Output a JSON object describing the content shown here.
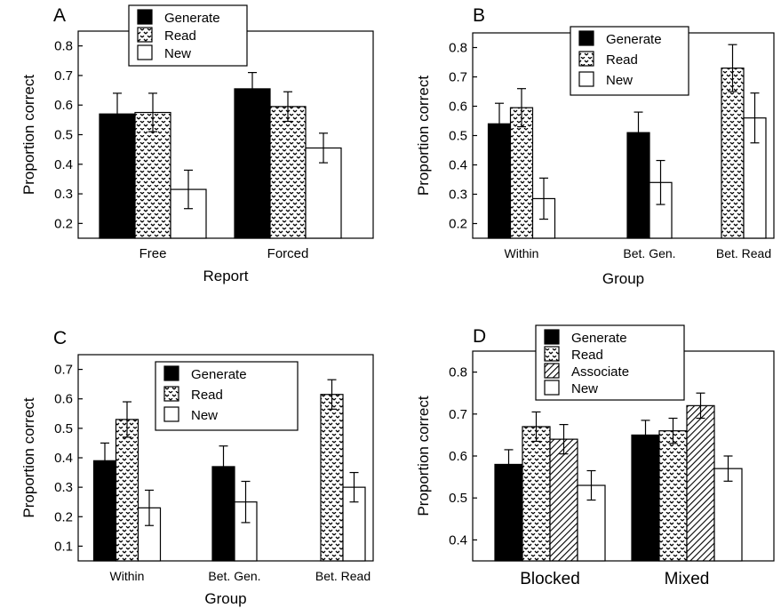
{
  "chart_data": [
    {
      "type": "bar",
      "panel_label": "A",
      "categories": [
        "Free",
        "Forced"
      ],
      "xlabel": "Report",
      "ylabel": "Proportion correct",
      "ylim": [
        0.15,
        0.85
      ],
      "yticks": [
        "0.2",
        "0.3",
        "0.4",
        "0.5",
        "0.6",
        "0.7",
        "0.8"
      ],
      "legend_position": "top-left",
      "series": [
        {
          "name": "Generate",
          "pattern": "solid",
          "values": [
            0.57,
            0.655
          ],
          "errors": [
            0.07,
            0.055
          ]
        },
        {
          "name": "Read",
          "pattern": "checker",
          "values": [
            0.575,
            0.595
          ],
          "errors": [
            0.065,
            0.05
          ]
        },
        {
          "name": "New",
          "pattern": "white",
          "values": [
            0.315,
            0.455
          ],
          "errors": [
            0.065,
            0.05
          ]
        }
      ]
    },
    {
      "type": "bar",
      "panel_label": "B",
      "categories": [
        "Within",
        "Bet. Gen.",
        "Bet. Read"
      ],
      "xlabel": "Group",
      "ylabel": "Proportion correct",
      "ylim": [
        0.15,
        0.85
      ],
      "yticks": [
        "0.2",
        "0.3",
        "0.4",
        "0.5",
        "0.6",
        "0.7",
        "0.8"
      ],
      "legend_position": "top-right",
      "series": [
        {
          "name": "Generate",
          "pattern": "solid",
          "values": [
            0.54,
            0.51,
            null
          ],
          "errors": [
            0.07,
            0.07,
            null
          ]
        },
        {
          "name": "Read",
          "pattern": "checker",
          "values": [
            0.595,
            null,
            0.73
          ],
          "errors": [
            0.065,
            null,
            0.08
          ]
        },
        {
          "name": "New",
          "pattern": "white",
          "values": [
            0.285,
            0.34,
            0.56
          ],
          "errors": [
            0.07,
            0.075,
            0.085
          ]
        }
      ]
    },
    {
      "type": "bar",
      "panel_label": "C",
      "categories": [
        "Within",
        "Bet. Gen.",
        "Bet. Read"
      ],
      "xlabel": "Group",
      "ylabel": "Proportion correct",
      "ylim": [
        0.05,
        0.75
      ],
      "yticks": [
        "0.1",
        "0.2",
        "0.3",
        "0.4",
        "0.5",
        "0.6",
        "0.7"
      ],
      "legend_position": "top-right",
      "series": [
        {
          "name": "Generate",
          "pattern": "solid",
          "values": [
            0.39,
            0.37,
            null
          ],
          "errors": [
            0.06,
            0.07,
            null
          ]
        },
        {
          "name": "Read",
          "pattern": "checker",
          "values": [
            0.53,
            null,
            0.615
          ],
          "errors": [
            0.06,
            null,
            0.05
          ]
        },
        {
          "name": "New",
          "pattern": "white",
          "values": [
            0.23,
            0.25,
            0.3
          ],
          "errors": [
            0.06,
            0.07,
            0.05
          ]
        }
      ]
    },
    {
      "type": "bar",
      "panel_label": "D",
      "categories": [
        "Blocked",
        "Mixed"
      ],
      "xlabel": "",
      "ylabel": "Proportion correct",
      "ylim": [
        0.35,
        0.85
      ],
      "yticks": [
        "0.4",
        "0.5",
        "0.6",
        "0.7",
        "0.8"
      ],
      "legend_position": "top-left",
      "series": [
        {
          "name": "Generate",
          "pattern": "solid",
          "values": [
            0.58,
            0.65
          ],
          "errors": [
            0.035,
            0.035
          ]
        },
        {
          "name": "Read",
          "pattern": "checker",
          "values": [
            0.67,
            0.66
          ],
          "errors": [
            0.035,
            0.03
          ]
        },
        {
          "name": "Associate",
          "pattern": "hatch",
          "values": [
            0.64,
            0.72
          ],
          "errors": [
            0.035,
            0.03
          ]
        },
        {
          "name": "New",
          "pattern": "white",
          "values": [
            0.53,
            0.57
          ],
          "errors": [
            0.035,
            0.03
          ]
        }
      ]
    }
  ]
}
